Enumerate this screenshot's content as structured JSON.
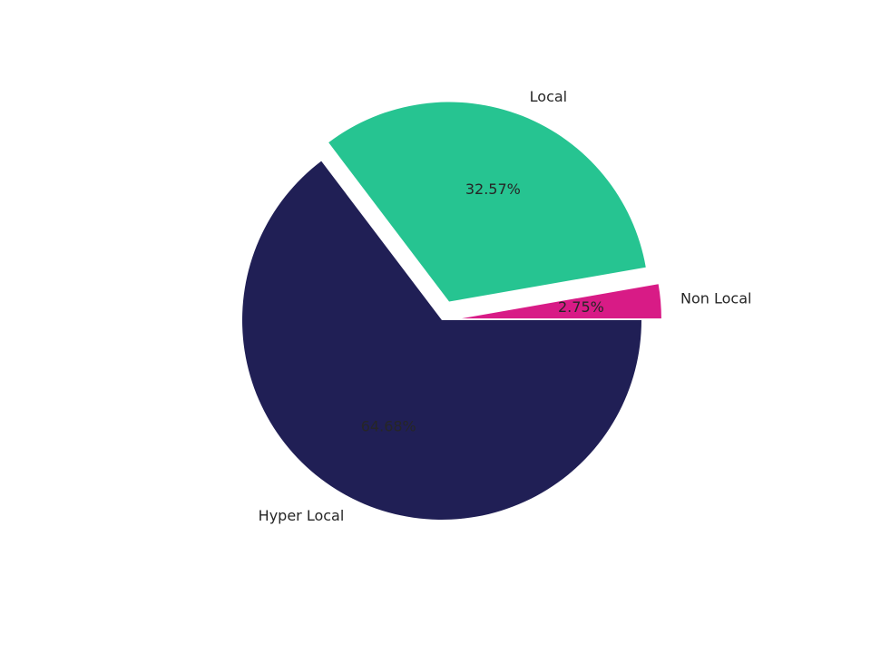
{
  "chart_data": {
    "type": "pie",
    "title": "",
    "slices": [
      {
        "label": "Hyper Local",
        "value": 64.68,
        "pct_label": "64.68%",
        "color": "#201f55",
        "exploded": false
      },
      {
        "label": "Local",
        "value": 32.57,
        "pct_label": "32.57%",
        "color": "#26c491",
        "exploded": true
      },
      {
        "label": "Non Local",
        "value": 2.75,
        "pct_label": "2.75%",
        "color": "#d81b86",
        "exploded": true
      }
    ],
    "start_angle_deg": 0,
    "direction": "clockwise",
    "legend": "none",
    "label_color": "#262626",
    "background": "#ffffff"
  }
}
